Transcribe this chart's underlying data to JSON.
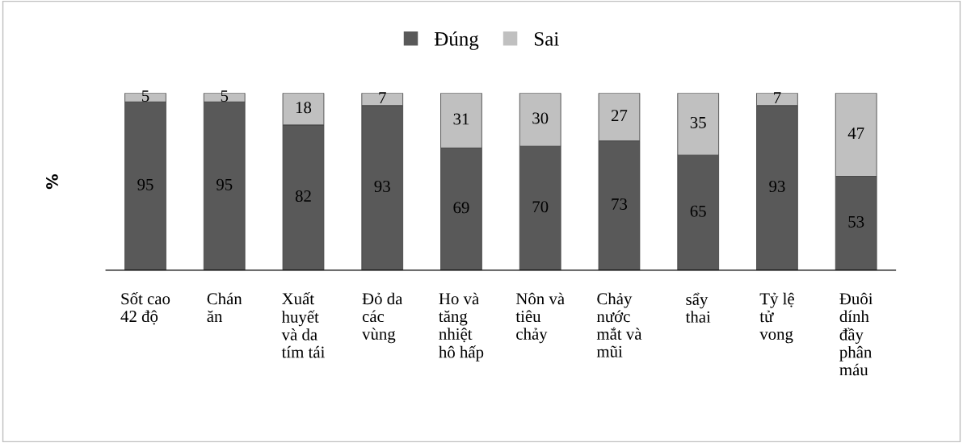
{
  "chart_data": {
    "type": "bar",
    "stacked": true,
    "ylabel": "%",
    "categories": [
      "Sốt cao\n42 độ",
      "Chán\năn",
      "Xuất\nhuyết\nvà da\ntím tái",
      "Đỏ da\ncác\nvùng",
      "Ho và\ntăng\nnhiệt\nhô hấp",
      "Nôn và\ntiêu\nchảy",
      "Chảy\nnước\nmắt và\nmũi",
      "sẩy\nthai",
      "Tỷ lệ\ntử\nvong",
      "Đuôi\ndính\nđầy\nphân\nmáu"
    ],
    "series": [
      {
        "name": "Đúng",
        "color": "#595959",
        "values": [
          95,
          95,
          82,
          93,
          69,
          70,
          73,
          65,
          93,
          53
        ]
      },
      {
        "name": "Sai",
        "color": "#c0c0c0",
        "values": [
          5,
          5,
          18,
          7,
          31,
          30,
          27,
          35,
          7,
          47
        ]
      }
    ],
    "data_labels": true,
    "legend": "top",
    "grid": false,
    "tick_labels": "x"
  }
}
